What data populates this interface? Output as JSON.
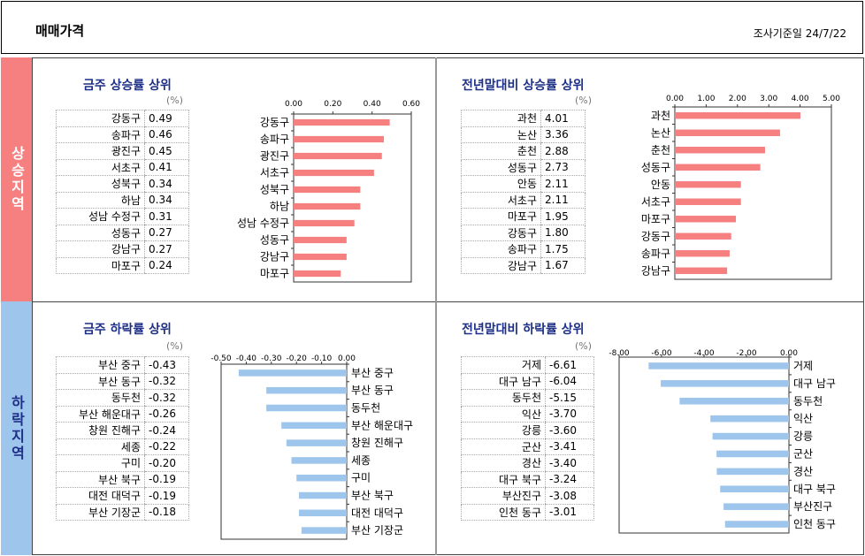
{
  "header": {
    "title": "매매가격",
    "survey_date": "조사기준일    24/7/22"
  },
  "side_up": "상승지역",
  "side_down": "하락지역",
  "chart_data": [
    {
      "type": "bar",
      "title": "금주 상승률 상위",
      "unit": "(%)",
      "categories": [
        "강동구",
        "송파구",
        "광진구",
        "서초구",
        "성북구",
        "하남",
        "성남 수정구",
        "성동구",
        "강남구",
        "마포구"
      ],
      "values": [
        "0.49",
        "0.46",
        "0.45",
        "0.41",
        "0.34",
        "0.34",
        "0.31",
        "0.27",
        "0.27",
        "0.24"
      ],
      "xlim": [
        0,
        0.6
      ],
      "ticks": [
        "0.00",
        "0.20",
        "0.40",
        "0.60"
      ],
      "color": "#f67f80"
    },
    {
      "type": "bar",
      "title": "전년말대비 상승률 상위",
      "unit": "(%)",
      "categories": [
        "과천",
        "논산",
        "춘천",
        "성동구",
        "안동",
        "서초구",
        "마포구",
        "강동구",
        "송파구",
        "강남구"
      ],
      "values": [
        "4.01",
        "3.36",
        "2.88",
        "2.73",
        "2.11",
        "2.11",
        "1.95",
        "1.80",
        "1.75",
        "1.67"
      ],
      "xlim": [
        0,
        5
      ],
      "ticks": [
        "0.00",
        "1.00",
        "2.00",
        "3.00",
        "4.00",
        "5.00"
      ],
      "color": "#f67f80"
    },
    {
      "type": "bar",
      "title": "금주 하락률 상위",
      "unit": "(%)",
      "categories": [
        "부산 중구",
        "부산 동구",
        "동두천",
        "부산 해운대구",
        "창원 진해구",
        "세종",
        "구미",
        "부산 북구",
        "대전 대덕구",
        "부산 기장군"
      ],
      "values": [
        "-0.43",
        "-0.32",
        "-0.32",
        "-0.26",
        "-0.24",
        "-0.22",
        "-0.20",
        "-0.19",
        "-0.19",
        "-0.18"
      ],
      "xlim": [
        -0.5,
        0
      ],
      "ticks": [
        "-0.50",
        "-0.40",
        "-0.30",
        "-0.20",
        "-0.10",
        "0.00"
      ],
      "color": "#9ec5ec"
    },
    {
      "type": "bar",
      "title": "전년말대비 하락률 상위",
      "unit": "(%)",
      "categories": [
        "거제",
        "대구 남구",
        "동두천",
        "익산",
        "강릉",
        "군산",
        "경산",
        "대구 북구",
        "부산진구",
        "인천 동구"
      ],
      "values": [
        "-6.61",
        "-6.04",
        "-5.15",
        "-3.70",
        "-3.60",
        "-3.41",
        "-3.40",
        "-3.24",
        "-3.08",
        "-3.01"
      ],
      "xlim": [
        -8,
        0
      ],
      "ticks": [
        "-8.00",
        "-6.00",
        "-4.00",
        "-2.00",
        "0.00"
      ],
      "color": "#9ec5ec"
    }
  ]
}
